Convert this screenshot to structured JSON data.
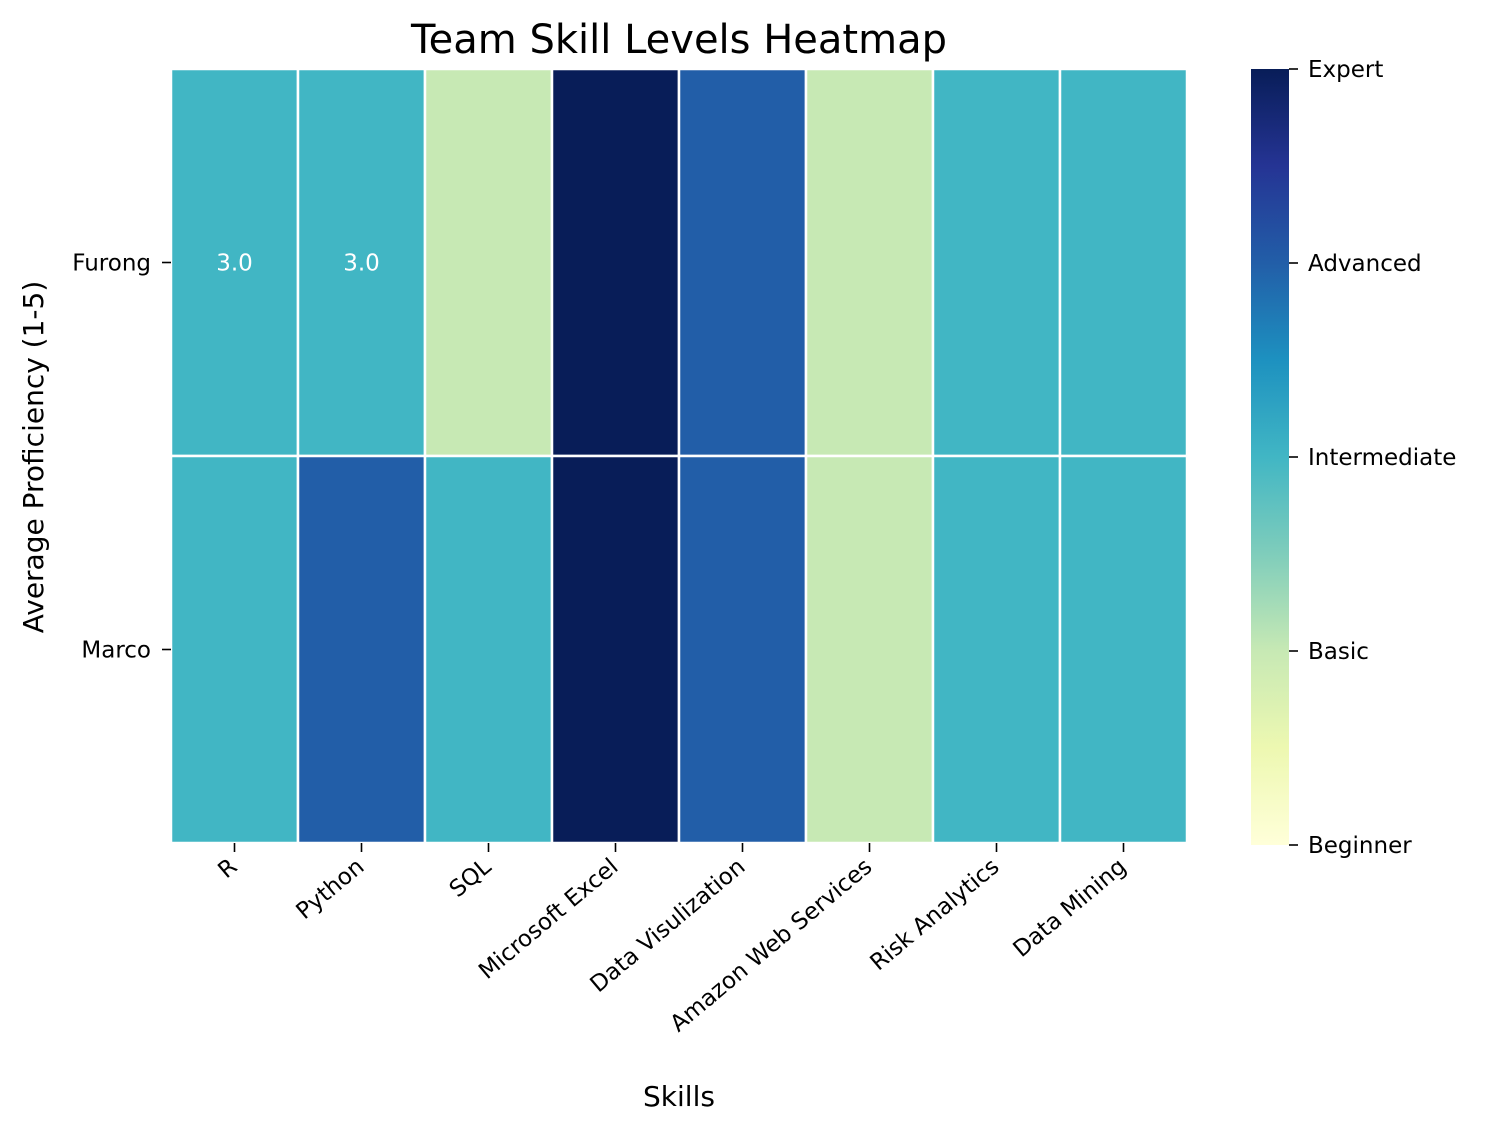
{
  "chart_data": {
    "type": "heatmap",
    "title": "Team Skill Levels Heatmap",
    "xlabel": "Skills",
    "ylabel": "Average Proficiency (1-5)",
    "x_categories": [
      "R",
      "Python",
      "SQL",
      "Microsoft Excel",
      "Data Visulization",
      "Amazon Web Services",
      "Risk Analytics",
      "Data Mining"
    ],
    "y_categories": [
      "Furong",
      "Marco"
    ],
    "values": [
      [
        3,
        3,
        2,
        5,
        4,
        2,
        3,
        3
      ],
      [
        3,
        4,
        3,
        5,
        4,
        2,
        3,
        3
      ]
    ],
    "annotations": [
      {
        "row": 0,
        "col": 0,
        "text": "3.0"
      },
      {
        "row": 0,
        "col": 1,
        "text": "3.0"
      }
    ],
    "colorbar": {
      "range": [
        1,
        5
      ],
      "ticks": [
        {
          "value": 5,
          "label": "Expert"
        },
        {
          "value": 4,
          "label": "Advanced"
        },
        {
          "value": 3,
          "label": "Intermediate"
        },
        {
          "value": 2,
          "label": "Basic"
        },
        {
          "value": 1,
          "label": "Beginner"
        }
      ],
      "colors": [
        "#ffffd9",
        "#edf8b1",
        "#c7e9b4",
        "#7fcdbb",
        "#41b6c4",
        "#1d91c0",
        "#225ea8",
        "#253494",
        "#081d58"
      ]
    }
  }
}
